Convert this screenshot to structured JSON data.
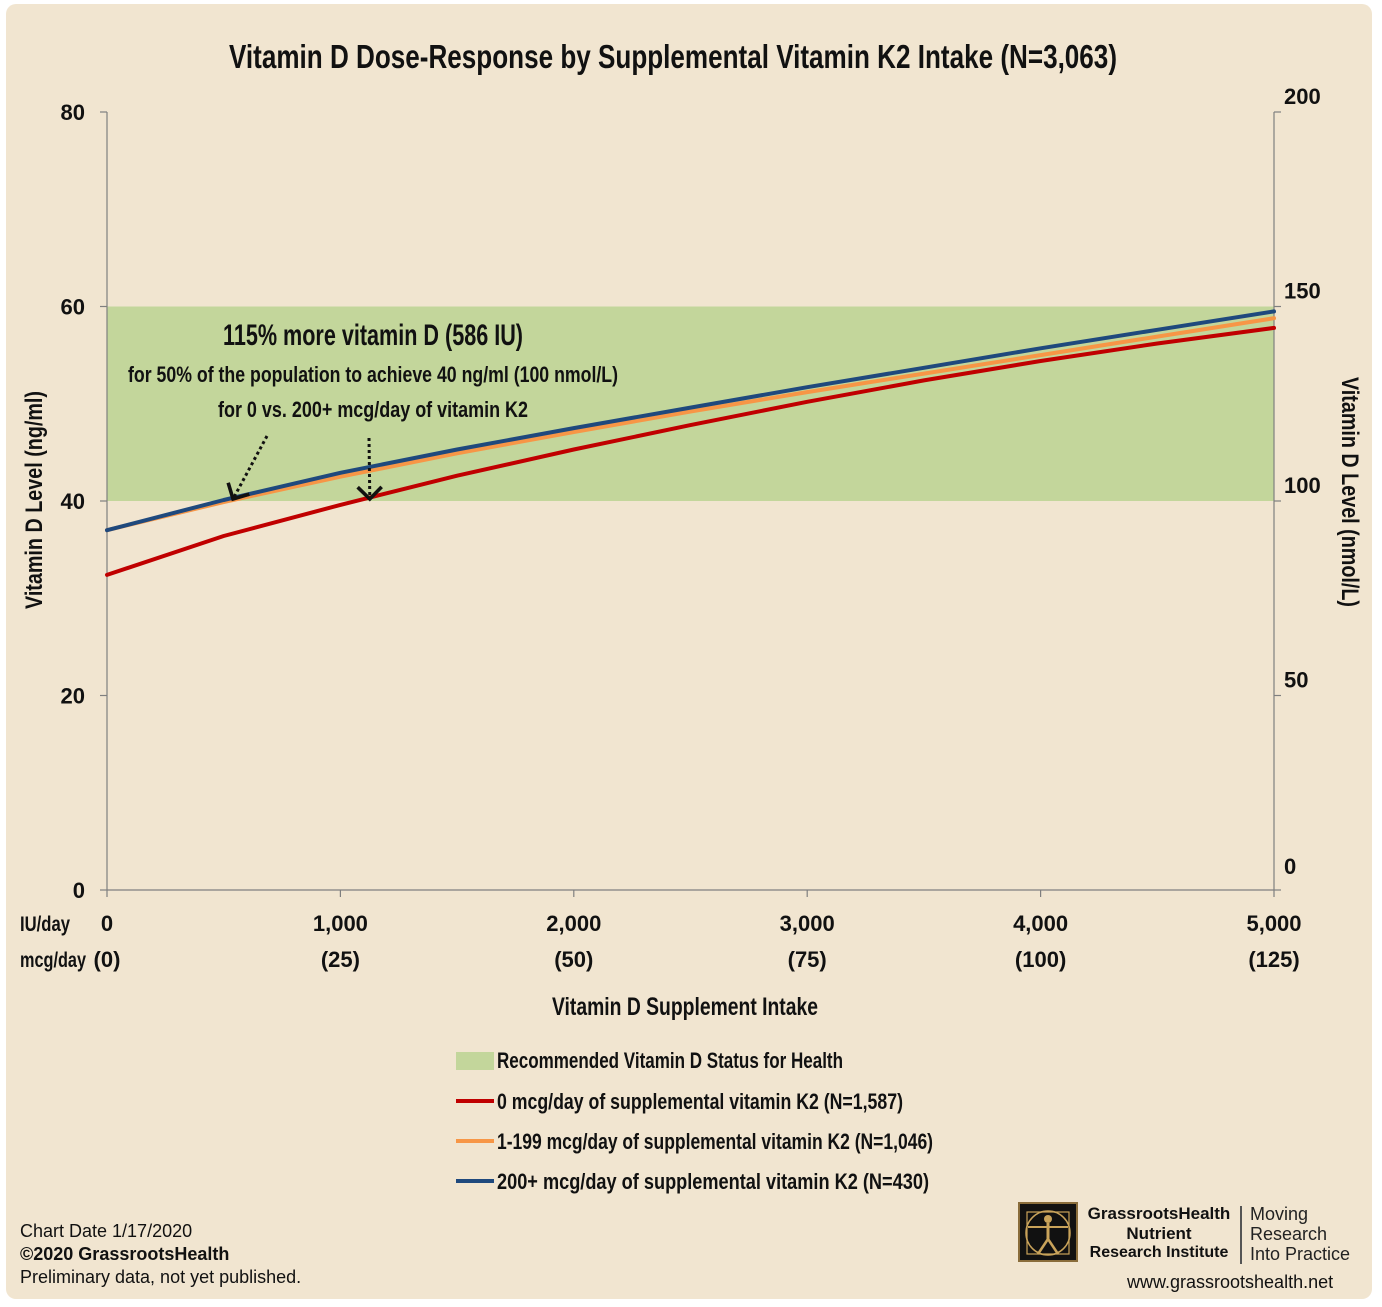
{
  "chart_data": {
    "type": "line",
    "title": "Vitamin D Dose-Response by Supplemental Vitamin K2 Intake (N=3,063)",
    "xlabel": "Vitamin D Supplement Intake",
    "ylabel_left": "Vitamin D Level (ng/ml)",
    "ylabel_right": "Vitamin D Level (nmol/L)",
    "x_row_labels": [
      "IU/day",
      "mcg/day"
    ],
    "x_ticks": [
      {
        "iu": 0,
        "label": "0",
        "mcg_label": "(0)"
      },
      {
        "iu": 1000,
        "label": "1,000",
        "mcg_label": "(25)"
      },
      {
        "iu": 2000,
        "label": "2,000",
        "mcg_label": "(50)"
      },
      {
        "iu": 3000,
        "label": "3,000",
        "mcg_label": "(75)"
      },
      {
        "iu": 4000,
        "label": "4,000",
        "mcg_label": "(100)"
      },
      {
        "iu": 5000,
        "label": "5,000",
        "mcg_label": "(125)"
      }
    ],
    "xlim": [
      0,
      5000
    ],
    "ylim_left": [
      0,
      80
    ],
    "y_ticks_left": [
      {
        "value": 0,
        "label": "0"
      },
      {
        "value": 20,
        "label": "20"
      },
      {
        "value": 40,
        "label": "40"
      },
      {
        "value": 60,
        "label": "60"
      },
      {
        "value": 80,
        "label": "80"
      }
    ],
    "ylim_right": [
      0,
      200
    ],
    "y_ticks_right": [
      {
        "value": 0,
        "label": "0"
      },
      {
        "value": 50,
        "label": "50"
      },
      {
        "value": 100,
        "label": "100"
      },
      {
        "value": 150,
        "label": "150"
      },
      {
        "value": 200,
        "label": "200"
      }
    ],
    "band": {
      "name": "Recommended Vitamin D Status for Health",
      "y_from": 40,
      "y_to": 60,
      "color": "#c3d69b"
    },
    "series": [
      {
        "name": "0 mcg/day of supplemental vitamin K2 (N=1,587)",
        "color": "#c00000",
        "x": [
          0,
          500,
          1000,
          1500,
          2000,
          2500,
          3000,
          3500,
          4000,
          4500,
          5000
        ],
        "y": [
          32.4,
          36.4,
          39.6,
          42.6,
          45.3,
          47.8,
          50.2,
          52.4,
          54.4,
          56.2,
          57.8
        ]
      },
      {
        "name": "1-199 mcg/day of supplemental vitamin K2 (N=1,046)",
        "color": "#f79646",
        "x": [
          0,
          500,
          1000,
          1500,
          2000,
          2500,
          3000,
          3500,
          4000,
          4500,
          5000
        ],
        "y": [
          37.0,
          39.9,
          42.5,
          44.9,
          47.1,
          49.2,
          51.2,
          53.1,
          55.0,
          56.9,
          58.8
        ]
      },
      {
        "name": "200+ mcg/day of supplemental vitamin K2 (N=430)",
        "color": "#1f497d",
        "x": [
          0,
          500,
          1000,
          1500,
          2000,
          2500,
          3000,
          3500,
          4000,
          4500,
          5000
        ],
        "y": [
          37.0,
          40.1,
          42.9,
          45.3,
          47.5,
          49.6,
          51.7,
          53.7,
          55.7,
          57.6,
          59.5
        ]
      }
    ],
    "annotation": {
      "headline": "115% more vitamin D (586 IU)",
      "line2": "for 50% of the population to achieve 40 ng/ml (100 nmol/L)",
      "line3": "for 0 vs. 200+ mcg/day of vitamin K2",
      "arrows": [
        {
          "target_x": 540,
          "target_y": 40
        },
        {
          "target_x": 1126,
          "target_y": 40
        }
      ]
    },
    "legend_position": "bottom-center",
    "grid": false
  },
  "footer": {
    "chart_date": "Chart Date 1/17/2020",
    "copyright": "©2020 GrassrootsHealth",
    "note": "Preliminary data, not yet published."
  },
  "logo": {
    "line1": "GrassrootsHealth",
    "line2": "Nutrient",
    "line3": "Research Institute",
    "tag1": "Moving",
    "tag2": "Research",
    "tag3": "Into Practice",
    "icon": "vitruvian-man-icon"
  },
  "website": "www.grassrootshealth.net"
}
